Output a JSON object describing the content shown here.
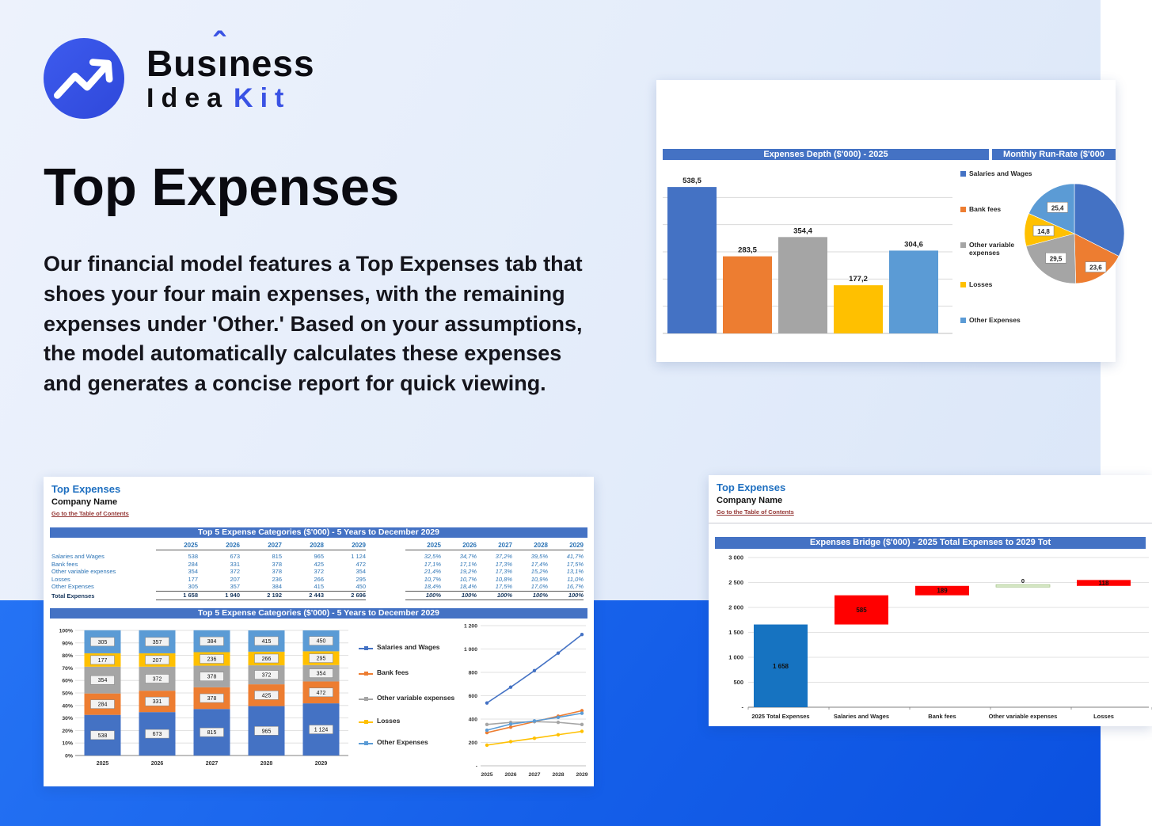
{
  "logo": {
    "part1": "Bus",
    "dotless_i": "ı",
    "caret": "ˆ",
    "part2": "ness",
    "idea": "Idea",
    "kit": "Kit"
  },
  "hero": {
    "title": "Top Expenses",
    "paragraph": "Our financial model features a Top Expenses tab that shoes your four main expenses, with the remaining expenses under 'Other.' Based on your assumptions, the model automatically calculates these expenses and generates a concise report for quick viewing."
  },
  "sheet": {
    "title": "Top Expenses",
    "company": "Company Name",
    "link": "Go to the Table of Contents"
  },
  "legend": [
    "Salaries and Wages",
    "Bank fees",
    "Other variable expenses",
    "Losses",
    "Other Expenses"
  ],
  "report_depth": {
    "bar_title": "Expenses Depth ($'000) - 2025",
    "pie_title": "Monthly Run-Rate ($'000"
  },
  "report_top5": {
    "table_title": "Top 5 Expense Categories ($'000) - 5 Years to December 2029",
    "chart_title": "Top 5 Expense Categories ($'000) - 5 Years to December 2029",
    "years": [
      "2025",
      "2026",
      "2027",
      "2028",
      "2029"
    ]
  },
  "report_bridge": {
    "chart_title": "Expenses Bridge ($'000) - 2025 Total Expenses to 2029 Tot"
  },
  "table": {
    "rows": [
      {
        "label": "Salaries and Wages",
        "values": [
          "538",
          "673",
          "815",
          "965",
          "1 124"
        ],
        "pcts": [
          "32,5%",
          "34,7%",
          "37,2%",
          "39,5%",
          "41,7%"
        ]
      },
      {
        "label": "Bank fees",
        "values": [
          "284",
          "331",
          "378",
          "425",
          "472"
        ],
        "pcts": [
          "17,1%",
          "17,1%",
          "17,3%",
          "17,4%",
          "17,5%"
        ]
      },
      {
        "label": "Other variable expenses",
        "values": [
          "354",
          "372",
          "378",
          "372",
          "354"
        ],
        "pcts": [
          "21,4%",
          "19,2%",
          "17,3%",
          "15,2%",
          "13,1%"
        ]
      },
      {
        "label": "Losses",
        "values": [
          "177",
          "207",
          "236",
          "266",
          "295"
        ],
        "pcts": [
          "10,7%",
          "10,7%",
          "10,8%",
          "10,9%",
          "11,0%"
        ]
      },
      {
        "label": "Other Expenses",
        "values": [
          "305",
          "357",
          "384",
          "415",
          "450"
        ],
        "pcts": [
          "18,4%",
          "18,4%",
          "17,5%",
          "17,0%",
          "16,7%"
        ]
      }
    ],
    "total": {
      "label": "Total Expenses",
      "values": [
        "1 658",
        "1 940",
        "2 192",
        "2 443",
        "2 696"
      ],
      "pcts": [
        "100%",
        "100%",
        "100%",
        "100%",
        "100%"
      ]
    }
  },
  "colors": {
    "accent_blue": "#3a53e4",
    "excel_header": "#4472C4",
    "series": [
      "#4472C4",
      "#ED7D31",
      "#A5A5A5",
      "#FFC000",
      "#5B9BD5"
    ],
    "red": "#FF0000",
    "total_blue": "#1673C1",
    "green_fill": "#D8E9C8",
    "green_stroke": "#A2C185"
  },
  "chart_data": [
    {
      "type": "bar",
      "title": "Expenses Depth ($'000) - 2025",
      "categories": [
        "Salaries and Wages",
        "Bank fees",
        "Other variable expenses",
        "Losses",
        "Other Expenses"
      ],
      "values": [
        538.5,
        283.5,
        354.4,
        177.2,
        304.6
      ],
      "labels": [
        "538,5",
        "283,5",
        "354,4",
        "177,2",
        "304,6"
      ],
      "ylim": [
        0,
        600
      ],
      "grid_step": 100,
      "legend_position": "right"
    },
    {
      "type": "pie",
      "title": "Monthly Run-Rate ($'000",
      "categories": [
        "Salaries and Wages",
        "Bank fees",
        "Other variable expenses",
        "Losses",
        "Other Expenses"
      ],
      "values": [
        44.9,
        23.6,
        29.5,
        14.8,
        25.4
      ],
      "labels": [
        "",
        "23,6",
        "29,5",
        "14,8",
        "25,4"
      ]
    },
    {
      "type": "bar",
      "subtype": "stacked-100",
      "title": "Top 5 Expense Categories ($'000) - 5 Years to December 2029",
      "categories": [
        "2025",
        "2026",
        "2027",
        "2028",
        "2029"
      ],
      "series": [
        {
          "name": "Salaries and Wages",
          "values": [
            538,
            673,
            815,
            965,
            1124
          ],
          "value_labels": [
            "538",
            "673",
            "815",
            "965",
            "1 124"
          ],
          "pcts": [
            32.5,
            34.7,
            37.2,
            39.5,
            41.7
          ]
        },
        {
          "name": "Bank fees",
          "values": [
            284,
            331,
            378,
            425,
            472
          ],
          "value_labels": [
            "284",
            "331",
            "378",
            "425",
            "472"
          ],
          "pcts": [
            17.1,
            17.1,
            17.3,
            17.4,
            17.5
          ]
        },
        {
          "name": "Other variable expenses",
          "values": [
            354,
            372,
            378,
            372,
            354
          ],
          "value_labels": [
            "354",
            "372",
            "378",
            "372",
            "354"
          ],
          "pcts": [
            21.4,
            19.2,
            17.3,
            15.2,
            13.1
          ]
        },
        {
          "name": "Losses",
          "values": [
            177,
            207,
            236,
            266,
            295
          ],
          "value_labels": [
            "177",
            "207",
            "236",
            "266",
            "295"
          ],
          "pcts": [
            10.7,
            10.7,
            10.8,
            10.9,
            11.0
          ]
        },
        {
          "name": "Other Expenses",
          "values": [
            305,
            357,
            384,
            415,
            450
          ],
          "value_labels": [
            "305",
            "357",
            "384",
            "415",
            "450"
          ],
          "pcts": [
            18.4,
            18.4,
            17.5,
            17.0,
            16.7
          ]
        }
      ],
      "yticks": [
        "0%",
        "10%",
        "20%",
        "30%",
        "40%",
        "50%",
        "60%",
        "70%",
        "80%",
        "90%",
        "100%"
      ]
    },
    {
      "type": "line",
      "x": [
        "2025",
        "2026",
        "2027",
        "2028",
        "2029"
      ],
      "yticks": [
        "-",
        "200",
        "400",
        "600",
        "800",
        "1 000",
        "1 200"
      ],
      "ylim": [
        0,
        1200
      ],
      "series": [
        {
          "name": "Salaries and Wages",
          "values": [
            538,
            673,
            815,
            965,
            1124
          ]
        },
        {
          "name": "Bank fees",
          "values": [
            284,
            331,
            378,
            425,
            472
          ]
        },
        {
          "name": "Other variable expenses",
          "values": [
            354,
            372,
            378,
            372,
            354
          ]
        },
        {
          "name": "Losses",
          "values": [
            177,
            207,
            236,
            266,
            295
          ]
        },
        {
          "name": "Other Expenses",
          "values": [
            305,
            357,
            384,
            415,
            450
          ]
        }
      ]
    },
    {
      "type": "waterfall",
      "title": "Expenses Bridge ($'000) - 2025 Total Expenses to 2029 Tot",
      "categories": [
        "2025 Total Expenses",
        "Salaries and Wages",
        "Bank fees",
        "Other variable expenses",
        "Losses"
      ],
      "deltas": [
        1658,
        585,
        189,
        0,
        118
      ],
      "labels": [
        "1 658",
        "585",
        "189",
        "0",
        "118"
      ],
      "kinds": [
        "total",
        "increase",
        "increase",
        "zero",
        "increase"
      ],
      "yticks": [
        "-",
        "500",
        "1 000",
        "1 500",
        "2 000",
        "2 500",
        "3 000"
      ],
      "ylim": [
        0,
        3000
      ]
    }
  ]
}
